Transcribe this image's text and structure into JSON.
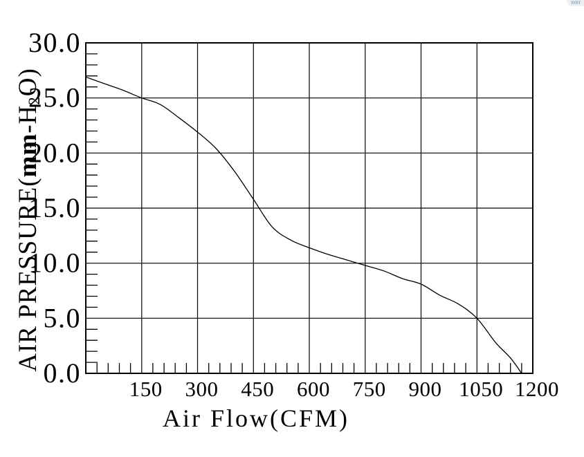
{
  "page": {
    "background": "#ffffff",
    "line_color": "#000000",
    "text_color": "#000000"
  },
  "artifact": {
    "label": "wer",
    "background": "#edeff2",
    "text_color": "#8aa0bc"
  },
  "chart_data": {
    "type": "line",
    "title": "",
    "xlabel": "Air Flow(CFM)",
    "ylabel": {
      "text": "AIR PRESSURE(mm-H2O)",
      "p1": "AIR PRESSURE(",
      "mm": "mm",
      "p2": "-H",
      "sub": "2",
      "p3": "O)"
    },
    "xlim": [
      0,
      1200
    ],
    "ylim": [
      0,
      30
    ],
    "grid": true,
    "legend": "none",
    "x_major_ticks": [
      150,
      300,
      450,
      600,
      750,
      900,
      1050,
      1200
    ],
    "x_tick_labels": [
      "150",
      "300",
      "450",
      "600",
      "750",
      "900",
      "1050",
      "1200"
    ],
    "x_minor_step": 30,
    "y_major_ticks": [
      30,
      25,
      20,
      15,
      10,
      5,
      0
    ],
    "y_tick_labels": [
      "30.0",
      "25.0",
      "20.0",
      "15.0",
      "10.0",
      "5.0",
      "0.0"
    ],
    "y_minor_step": 1,
    "axis_color": "#000000",
    "curve_color": "#000000",
    "series": [
      {
        "name": "air-pressure-vs-air-flow",
        "x": [
          0,
          50,
          100,
          150,
          200,
          250,
          300,
          350,
          400,
          450,
          500,
          550,
          600,
          650,
          700,
          750,
          800,
          850,
          900,
          950,
          1000,
          1050,
          1100,
          1140,
          1170
        ],
        "y": [
          26.9,
          26.3,
          25.7,
          25.0,
          24.4,
          23.2,
          21.9,
          20.4,
          18.3,
          15.8,
          13.3,
          12.1,
          11.4,
          10.8,
          10.3,
          9.8,
          9.3,
          8.6,
          8.1,
          7.1,
          6.3,
          5.0,
          2.8,
          1.4,
          0.0
        ]
      }
    ]
  }
}
